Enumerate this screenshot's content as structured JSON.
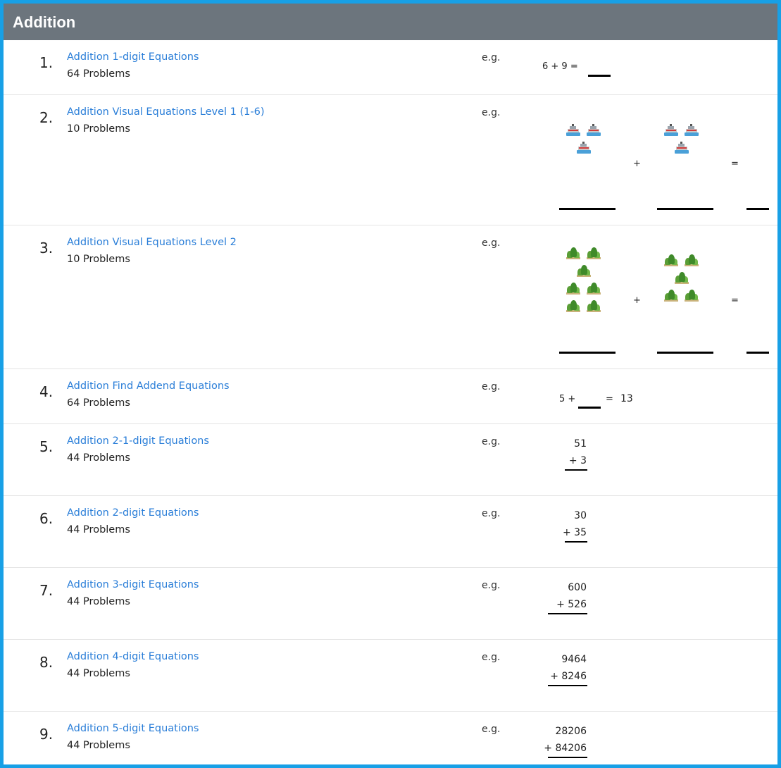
{
  "header": {
    "title": "Addition"
  },
  "eg_label": "e.g.",
  "problems": [
    {
      "number": "1.",
      "title": "Addition 1-digit Equations",
      "count": "64 Problems",
      "example": {
        "text": "6 + 9 ="
      }
    },
    {
      "number": "2.",
      "title": "Addition Visual Equations Level 1 (1-6)",
      "count": "10 Problems",
      "example": {
        "left_count": 3,
        "right_count": 3,
        "icon": "ship-icon",
        "plus": "+",
        "equals": "="
      }
    },
    {
      "number": "3.",
      "title": "Addition Visual Equations Level 2",
      "count": "10 Problems",
      "example": {
        "left_count": 7,
        "right_count": 5,
        "icon": "bush-icon",
        "plus": "+",
        "equals": "="
      }
    },
    {
      "number": "4.",
      "title": "Addition Find Addend Equations",
      "count": "64 Problems",
      "example": {
        "left": "5 +",
        "equals": "=",
        "result": "13"
      }
    },
    {
      "number": "5.",
      "title": "Addition 2-1-digit Equations",
      "count": "44 Problems",
      "example": {
        "top": "51",
        "bottom": "+ 3"
      }
    },
    {
      "number": "6.",
      "title": "Addition 2-digit Equations",
      "count": "44 Problems",
      "example": {
        "top": "30",
        "bottom": "+ 35"
      }
    },
    {
      "number": "7.",
      "title": "Addition 3-digit Equations",
      "count": "44 Problems",
      "example": {
        "top": "600",
        "bottom": "+ 526"
      }
    },
    {
      "number": "8.",
      "title": "Addition 4-digit Equations",
      "count": "44 Problems",
      "example": {
        "top": "9464",
        "bottom": "+ 8246"
      }
    },
    {
      "number": "9.",
      "title": "Addition 5-digit Equations",
      "count": "44 Problems",
      "example": {
        "top": "28206",
        "bottom": "+ 84206"
      }
    }
  ],
  "colors": {
    "border": "#18a0e6",
    "header_bg": "#6c757d",
    "link": "#2a7ed8"
  }
}
